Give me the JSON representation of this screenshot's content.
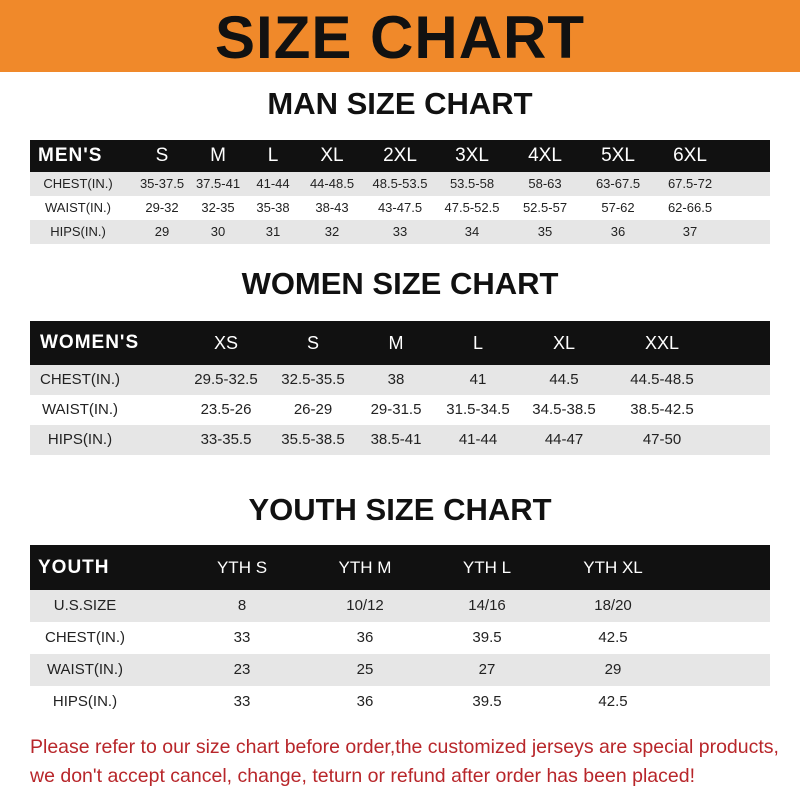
{
  "banner": "SIZE CHART",
  "men": {
    "title": "MAN SIZE CHART",
    "header_label": "MEN'S",
    "sizes": [
      "S",
      "M",
      "L",
      "XL",
      "2XL",
      "3XL",
      "4XL",
      "5XL",
      "6XL"
    ],
    "rows": [
      {
        "label": "CHEST(IN.)",
        "values": [
          "35-37.5",
          "37.5-41",
          "41-44",
          "44-48.5",
          "48.5-53.5",
          "53.5-58",
          "58-63",
          "63-67.5",
          "67.5-72"
        ]
      },
      {
        "label": "WAIST(IN.)",
        "values": [
          "29-32",
          "32-35",
          "35-38",
          "38-43",
          "43-47.5",
          "47.5-52.5",
          "52.5-57",
          "57-62",
          "62-66.5"
        ]
      },
      {
        "label": "HIPS(IN.)",
        "values": [
          "29",
          "30",
          "31",
          "32",
          "33",
          "34",
          "35",
          "36",
          "37"
        ]
      }
    ]
  },
  "women": {
    "title": "WOMEN SIZE CHART",
    "header_label": "WOMEN'S",
    "sizes": [
      "XS",
      "S",
      "M",
      "L",
      "XL",
      "XXL"
    ],
    "rows": [
      {
        "label": "CHEST(IN.)",
        "values": [
          "29.5-32.5",
          "32.5-35.5",
          "38",
          "41",
          "44.5",
          "44.5-48.5"
        ]
      },
      {
        "label": "WAIST(IN.)",
        "values": [
          "23.5-26",
          "26-29",
          "29-31.5",
          "31.5-34.5",
          "34.5-38.5",
          "38.5-42.5"
        ]
      },
      {
        "label": "HIPS(IN.)",
        "values": [
          "33-35.5",
          "35.5-38.5",
          "38.5-41",
          "41-44",
          "44-47",
          "47-50"
        ]
      }
    ]
  },
  "youth": {
    "title": "YOUTH SIZE CHART",
    "header_label": "YOUTH",
    "sizes": [
      "YTH S",
      "YTH M",
      "YTH L",
      "YTH XL"
    ],
    "rows": [
      {
        "label": "U.S.SIZE",
        "values": [
          "8",
          "10/12",
          "14/16",
          "18/20"
        ]
      },
      {
        "label": "CHEST(IN.)",
        "values": [
          "33",
          "36",
          "39.5",
          "42.5"
        ]
      },
      {
        "label": "WAIST(IN.)",
        "values": [
          "23",
          "25",
          "27",
          "29"
        ]
      },
      {
        "label": "HIPS(IN.)",
        "values": [
          "33",
          "36",
          "39.5",
          "42.5"
        ]
      }
    ]
  },
  "notice": [
    "Please refer to our size chart before order,the customized jerseys are special products,",
    "we don't accept cancel, change, teturn or refund after order has been placed!"
  ],
  "colors": {
    "banner": "#f0892a",
    "header_row": "#111111",
    "stripe": "#e6e6e6",
    "notice": "#b8262a"
  }
}
